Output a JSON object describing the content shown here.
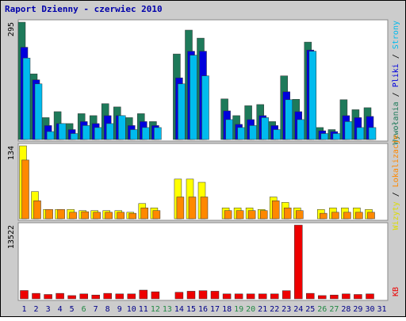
{
  "title": "Raport Dzienny -  czerwiec 2010",
  "colors": {
    "page_bg": "#ffffff",
    "frame_bg": "#cccccc",
    "panel_bg": "#ffffff",
    "title": "#0000aa",
    "wywolania": "#1e7a5a",
    "pliki": "#0000dd",
    "strony": "#00bbee",
    "wizyty": "#ffff00",
    "lokalizacje": "#ff8800",
    "kb": "#ee0000",
    "day_normal": "#000088",
    "day_weekend": "#228844"
  },
  "right_labels": {
    "top": [
      {
        "text": "Wywołania",
        "color": "#1e7a5a"
      },
      {
        "text": " / ",
        "color": "#000000"
      },
      {
        "text": "Pliki",
        "color": "#0000dd"
      },
      {
        "text": " / ",
        "color": "#000000"
      },
      {
        "text": "Strony",
        "color": "#00bbee"
      }
    ],
    "middle": [
      {
        "text": "Wizyty",
        "color": "#dddd00"
      },
      {
        "text": " / ",
        "color": "#000000"
      },
      {
        "text": "Lokalizacje",
        "color": "#ff8800"
      }
    ],
    "bottom": [
      {
        "text": "KB",
        "color": "#ee0000"
      }
    ]
  },
  "chart_data": {
    "type": "bar",
    "title": "Raport Dzienny -  czerwiec 2010",
    "categories": [
      "1",
      "2",
      "3",
      "4",
      "5",
      "6",
      "7",
      "8",
      "9",
      "10",
      "11",
      "12",
      "13",
      "14",
      "15",
      "16",
      "17",
      "18",
      "19",
      "20",
      "21",
      "22",
      "23",
      "24",
      "25",
      "26",
      "27",
      "28",
      "29",
      "30",
      "31"
    ],
    "weekend_days": [
      "6",
      "12",
      "13",
      "19",
      "20",
      "26",
      "27"
    ],
    "panels": [
      {
        "id": "hits",
        "ymax_label": "295",
        "ylim": [
          0,
          295
        ],
        "series": [
          {
            "name": "Wywołania",
            "color": "#1e7a5a",
            "values": [
              295,
              165,
              55,
              70,
              40,
              65,
              60,
              90,
              82,
              55,
              65,
              45,
              0,
              215,
              275,
              255,
              0,
              102,
              60,
              85,
              88,
              45,
              160,
              101,
              245,
              30,
              25,
              100,
              75,
              80,
              0
            ]
          },
          {
            "name": "Pliki",
            "color": "#0000dd",
            "values": [
              232,
              150,
              35,
              40,
              25,
              45,
              40,
              60,
              60,
              35,
              45,
              35,
              0,
              155,
              222,
              222,
              0,
              72,
              38,
              50,
              60,
              35,
              120,
              70,
              225,
              22,
              20,
              60,
              55,
              58,
              0
            ]
          },
          {
            "name": "Strony",
            "color": "#00bbee",
            "values": [
              205,
              140,
              20,
              40,
              15,
              35,
              30,
              40,
              60,
              25,
              30,
              30,
              0,
              140,
              212,
              160,
              0,
              50,
              30,
              35,
              55,
              25,
              100,
              50,
              222,
              15,
              15,
              45,
              30,
              30,
              0
            ]
          }
        ]
      },
      {
        "id": "visits",
        "ymax_label": "134",
        "ylim": [
          0,
          134
        ],
        "series": [
          {
            "name": "Wizyty",
            "color": "#ffff00",
            "values": [
              134,
              50,
              17,
              17,
              17,
              15,
              15,
              15,
              15,
              12,
              28,
              20,
              0,
              73,
              73,
              67,
              0,
              20,
              20,
              20,
              17,
              40,
              30,
              20,
              0,
              17,
              20,
              20,
              20,
              17,
              0
            ]
          },
          {
            "name": "Lokalizacje",
            "color": "#ff8800",
            "values": [
              108,
              33,
              17,
              17,
              12,
              13,
              12,
              12,
              12,
              10,
              20,
              15,
              0,
              40,
              40,
              40,
              0,
              15,
              15,
              15,
              15,
              33,
              20,
              15,
              0,
              10,
              12,
              12,
              12,
              12,
              0
            ]
          }
        ]
      },
      {
        "id": "kb",
        "ymax_label": "13522",
        "ylim": [
          0,
          13522
        ],
        "series": [
          {
            "name": "KB",
            "color": "#ee0000",
            "values": [
              1520,
              1000,
              800,
              1000,
              600,
              900,
              700,
              1000,
              900,
              900,
              1600,
              1300,
              0,
              1200,
              1400,
              1500,
              1400,
              900,
              900,
              900,
              900,
              900,
              1500,
              13522,
              1000,
              600,
              700,
              900,
              800,
              900,
              0
            ]
          }
        ]
      }
    ]
  }
}
